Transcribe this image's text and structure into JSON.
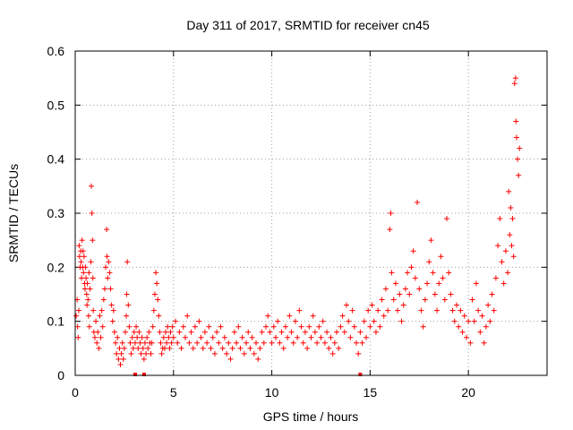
{
  "chart_data": {
    "type": "scatter",
    "title": "Day 311 of 2017, SRMTID for receiver cn45",
    "xlabel": "GPS time / hours",
    "ylabel": "SRMTID / TECUs",
    "xlim": [
      0,
      24
    ],
    "ylim": [
      0,
      0.6
    ],
    "xticks": [
      0,
      5,
      10,
      15,
      20
    ],
    "xtick_labels": [
      "0",
      "5",
      "10",
      "15",
      "20"
    ],
    "yticks": [
      0,
      0.1,
      0.2,
      0.3,
      0.4,
      0.5,
      0.6
    ],
    "ytick_labels": [
      "0",
      "0.1",
      "0.2",
      "0.3",
      "0.4",
      "0.5",
      "0.6"
    ],
    "grid": true,
    "marker": "+",
    "color": "#ff0000",
    "series": [
      {
        "name": "cn45",
        "points": [
          [
            0.05,
            0.11
          ],
          [
            0.1,
            0.14
          ],
          [
            0.12,
            0.09
          ],
          [
            0.15,
            0.07
          ],
          [
            0.18,
            0.12
          ],
          [
            0.2,
            0.24
          ],
          [
            0.22,
            0.22
          ],
          [
            0.25,
            0.2
          ],
          [
            0.28,
            0.23
          ],
          [
            0.3,
            0.21
          ],
          [
            0.32,
            0.18
          ],
          [
            0.35,
            0.25
          ],
          [
            0.38,
            0.2
          ],
          [
            0.4,
            0.23
          ],
          [
            0.42,
            0.19
          ],
          [
            0.45,
            0.22
          ],
          [
            0.48,
            0.17
          ],
          [
            0.5,
            0.16
          ],
          [
            0.52,
            0.2
          ],
          [
            0.55,
            0.18
          ],
          [
            0.58,
            0.15
          ],
          [
            0.6,
            0.13
          ],
          [
            0.62,
            0.17
          ],
          [
            0.65,
            0.14
          ],
          [
            0.68,
            0.11
          ],
          [
            0.7,
            0.19
          ],
          [
            0.72,
            0.09
          ],
          [
            0.75,
            0.16
          ],
          [
            0.8,
            0.21
          ],
          [
            0.82,
            0.35
          ],
          [
            0.85,
            0.3
          ],
          [
            0.88,
            0.25
          ],
          [
            0.9,
            0.18
          ],
          [
            0.92,
            0.12
          ],
          [
            0.95,
            0.08
          ],
          [
            1.0,
            0.07
          ],
          [
            1.05,
            0.1
          ],
          [
            1.1,
            0.06
          ],
          [
            1.15,
            0.08
          ],
          [
            1.2,
            0.05
          ],
          [
            1.25,
            0.11
          ],
          [
            1.3,
            0.07
          ],
          [
            1.35,
            0.12
          ],
          [
            1.4,
            0.09
          ],
          [
            1.45,
            0.14
          ],
          [
            1.5,
            0.16
          ],
          [
            1.55,
            0.2
          ],
          [
            1.6,
            0.27
          ],
          [
            1.62,
            0.22
          ],
          [
            1.65,
            0.18
          ],
          [
            1.7,
            0.21
          ],
          [
            1.75,
            0.19
          ],
          [
            1.8,
            0.16
          ],
          [
            1.85,
            0.13
          ],
          [
            1.9,
            0.1
          ],
          [
            1.95,
            0.12
          ],
          [
            2.0,
            0.08
          ],
          [
            2.05,
            0.06
          ],
          [
            2.1,
            0.04
          ],
          [
            2.15,
            0.07
          ],
          [
            2.2,
            0.03
          ],
          [
            2.25,
            0.05
          ],
          [
            2.3,
            0.02
          ],
          [
            2.35,
            0.04
          ],
          [
            2.4,
            0.06
          ],
          [
            2.45,
            0.03
          ],
          [
            2.5,
            0.05
          ],
          [
            2.55,
            0.08
          ],
          [
            2.6,
            0.11
          ],
          [
            2.62,
            0.15
          ],
          [
            2.65,
            0.21
          ],
          [
            2.7,
            0.13
          ],
          [
            2.75,
            0.09
          ],
          [
            2.8,
            0.06
          ],
          [
            2.85,
            0.04
          ],
          [
            2.9,
            0.07
          ],
          [
            2.95,
            0.05
          ],
          [
            3.0,
            0.08
          ],
          [
            3.05,
            0.06
          ],
          [
            3.1,
            0.09
          ],
          [
            3.15,
            0.07
          ],
          [
            3.2,
            0.05
          ],
          [
            3.25,
            0.08
          ],
          [
            3.3,
            0.06
          ],
          [
            3.35,
            0.04
          ],
          [
            3.4,
            0.07
          ],
          [
            3.45,
            0.05
          ],
          [
            3.5,
            0.03
          ],
          [
            3.55,
            0.06
          ],
          [
            3.6,
            0.04
          ],
          [
            3.65,
            0.07
          ],
          [
            3.7,
            0.05
          ],
          [
            3.75,
            0.08
          ],
          [
            3.8,
            0.06
          ],
          [
            3.85,
            0.04
          ],
          [
            3.9,
            0.06
          ],
          [
            3.95,
            0.09
          ],
          [
            4.0,
            0.12
          ],
          [
            4.05,
            0.15
          ],
          [
            4.1,
            0.19
          ],
          [
            4.15,
            0.17
          ],
          [
            4.2,
            0.14
          ],
          [
            4.25,
            0.11
          ],
          [
            4.3,
            0.08
          ],
          [
            4.35,
            0.06
          ],
          [
            4.4,
            0.04
          ],
          [
            4.45,
            0.05
          ],
          [
            4.5,
            0.07
          ],
          [
            4.55,
            0.05
          ],
          [
            4.6,
            0.08
          ],
          [
            4.65,
            0.06
          ],
          [
            4.7,
            0.09
          ],
          [
            4.75,
            0.07
          ],
          [
            4.8,
            0.05
          ],
          [
            4.85,
            0.08
          ],
          [
            4.9,
            0.06
          ],
          [
            4.95,
            0.09
          ],
          [
            5.0,
            0.07
          ],
          [
            5.1,
            0.1
          ],
          [
            5.2,
            0.06
          ],
          [
            5.3,
            0.08
          ],
          [
            5.4,
            0.05
          ],
          [
            5.5,
            0.09
          ],
          [
            5.6,
            0.07
          ],
          [
            5.7,
            0.11
          ],
          [
            5.8,
            0.06
          ],
          [
            5.9,
            0.08
          ],
          [
            6.0,
            0.05
          ],
          [
            6.1,
            0.09
          ],
          [
            6.2,
            0.06
          ],
          [
            6.3,
            0.1
          ],
          [
            6.4,
            0.07
          ],
          [
            6.5,
            0.05
          ],
          [
            6.6,
            0.08
          ],
          [
            6.7,
            0.06
          ],
          [
            6.8,
            0.09
          ],
          [
            6.9,
            0.05
          ],
          [
            7.0,
            0.07
          ],
          [
            7.1,
            0.04
          ],
          [
            7.2,
            0.08
          ],
          [
            7.3,
            0.06
          ],
          [
            7.4,
            0.09
          ],
          [
            7.5,
            0.05
          ],
          [
            7.6,
            0.07
          ],
          [
            7.7,
            0.04
          ],
          [
            7.8,
            0.06
          ],
          [
            7.9,
            0.03
          ],
          [
            8.0,
            0.05
          ],
          [
            8.1,
            0.08
          ],
          [
            8.2,
            0.06
          ],
          [
            8.3,
            0.09
          ],
          [
            8.4,
            0.05
          ],
          [
            8.5,
            0.07
          ],
          [
            8.6,
            0.04
          ],
          [
            8.7,
            0.06
          ],
          [
            8.8,
            0.08
          ],
          [
            8.9,
            0.05
          ],
          [
            9.0,
            0.07
          ],
          [
            9.1,
            0.04
          ],
          [
            9.2,
            0.06
          ],
          [
            9.3,
            0.03
          ],
          [
            9.4,
            0.05
          ],
          [
            9.5,
            0.08
          ],
          [
            9.6,
            0.06
          ],
          [
            9.7,
            0.09
          ],
          [
            9.8,
            0.11
          ],
          [
            9.9,
            0.08
          ],
          [
            10.0,
            0.06
          ],
          [
            10.1,
            0.09
          ],
          [
            10.2,
            0.07
          ],
          [
            10.3,
            0.1
          ],
          [
            10.4,
            0.06
          ],
          [
            10.5,
            0.08
          ],
          [
            10.6,
            0.05
          ],
          [
            10.7,
            0.09
          ],
          [
            10.8,
            0.07
          ],
          [
            10.9,
            0.11
          ],
          [
            11.0,
            0.08
          ],
          [
            11.1,
            0.06
          ],
          [
            11.2,
            0.1
          ],
          [
            11.3,
            0.07
          ],
          [
            11.4,
            0.12
          ],
          [
            11.5,
            0.09
          ],
          [
            11.6,
            0.06
          ],
          [
            11.7,
            0.08
          ],
          [
            11.8,
            0.05
          ],
          [
            11.9,
            0.09
          ],
          [
            12.0,
            0.07
          ],
          [
            12.1,
            0.11
          ],
          [
            12.2,
            0.08
          ],
          [
            12.3,
            0.06
          ],
          [
            12.4,
            0.09
          ],
          [
            12.5,
            0.07
          ],
          [
            12.6,
            0.1
          ],
          [
            12.7,
            0.06
          ],
          [
            12.8,
            0.08
          ],
          [
            12.9,
            0.05
          ],
          [
            13.0,
            0.07
          ],
          [
            13.1,
            0.04
          ],
          [
            13.2,
            0.06
          ],
          [
            13.3,
            0.08
          ],
          [
            13.4,
            0.05
          ],
          [
            13.5,
            0.09
          ],
          [
            13.6,
            0.11
          ],
          [
            13.7,
            0.08
          ],
          [
            13.8,
            0.13
          ],
          [
            13.9,
            0.1
          ],
          [
            14.0,
            0.07
          ],
          [
            14.1,
            0.12
          ],
          [
            14.2,
            0.09
          ],
          [
            14.3,
            0.06
          ],
          [
            14.4,
            0.04
          ],
          [
            14.5,
            0.08
          ],
          [
            14.6,
            0.06
          ],
          [
            14.7,
            0.1
          ],
          [
            14.8,
            0.07
          ],
          [
            14.9,
            0.12
          ],
          [
            15.0,
            0.09
          ],
          [
            15.1,
            0.13
          ],
          [
            15.2,
            0.1
          ],
          [
            15.3,
            0.08
          ],
          [
            15.4,
            0.12
          ],
          [
            15.5,
            0.09
          ],
          [
            15.6,
            0.14
          ],
          [
            15.7,
            0.11
          ],
          [
            15.8,
            0.16
          ],
          [
            15.9,
            0.12
          ],
          [
            16.0,
            0.27
          ],
          [
            16.05,
            0.3
          ],
          [
            16.1,
            0.19
          ],
          [
            16.2,
            0.14
          ],
          [
            16.3,
            0.17
          ],
          [
            16.4,
            0.12
          ],
          [
            16.5,
            0.15
          ],
          [
            16.6,
            0.1
          ],
          [
            16.7,
            0.13
          ],
          [
            16.8,
            0.16
          ],
          [
            16.9,
            0.19
          ],
          [
            17.0,
            0.15
          ],
          [
            17.1,
            0.2
          ],
          [
            17.2,
            0.23
          ],
          [
            17.3,
            0.18
          ],
          [
            17.4,
            0.32
          ],
          [
            17.5,
            0.16
          ],
          [
            17.6,
            0.12
          ],
          [
            17.7,
            0.09
          ],
          [
            17.8,
            0.14
          ],
          [
            17.9,
            0.17
          ],
          [
            18.0,
            0.21
          ],
          [
            18.1,
            0.25
          ],
          [
            18.2,
            0.19
          ],
          [
            18.3,
            0.15
          ],
          [
            18.4,
            0.12
          ],
          [
            18.5,
            0.17
          ],
          [
            18.6,
            0.22
          ],
          [
            18.7,
            0.18
          ],
          [
            18.8,
            0.14
          ],
          [
            18.9,
            0.29
          ],
          [
            19.0,
            0.19
          ],
          [
            19.1,
            0.15
          ],
          [
            19.2,
            0.12
          ],
          [
            19.3,
            0.1
          ],
          [
            19.4,
            0.13
          ],
          [
            19.5,
            0.09
          ],
          [
            19.6,
            0.12
          ],
          [
            19.7,
            0.08
          ],
          [
            19.8,
            0.11
          ],
          [
            19.9,
            0.07
          ],
          [
            20.0,
            0.1
          ],
          [
            20.1,
            0.06
          ],
          [
            20.2,
            0.14
          ],
          [
            20.3,
            0.1
          ],
          [
            20.4,
            0.17
          ],
          [
            20.5,
            0.12
          ],
          [
            20.6,
            0.08
          ],
          [
            20.7,
            0.11
          ],
          [
            20.8,
            0.06
          ],
          [
            20.9,
            0.09
          ],
          [
            21.0,
            0.13
          ],
          [
            21.1,
            0.1
          ],
          [
            21.2,
            0.15
          ],
          [
            21.3,
            0.12
          ],
          [
            21.4,
            0.18
          ],
          [
            21.5,
            0.24
          ],
          [
            21.6,
            0.29
          ],
          [
            21.7,
            0.21
          ],
          [
            21.8,
            0.17
          ],
          [
            21.9,
            0.23
          ],
          [
            22.0,
            0.19
          ],
          [
            22.05,
            0.34
          ],
          [
            22.1,
            0.26
          ],
          [
            22.15,
            0.31
          ],
          [
            22.2,
            0.24
          ],
          [
            22.25,
            0.29
          ],
          [
            22.3,
            0.22
          ],
          [
            22.35,
            0.54
          ],
          [
            22.4,
            0.55
          ],
          [
            22.42,
            0.47
          ],
          [
            22.45,
            0.44
          ],
          [
            22.5,
            0.4
          ],
          [
            22.55,
            0.37
          ],
          [
            22.6,
            0.42
          ]
        ]
      }
    ],
    "bottom_markers": [
      3.05,
      3.5,
      14.5
    ]
  }
}
